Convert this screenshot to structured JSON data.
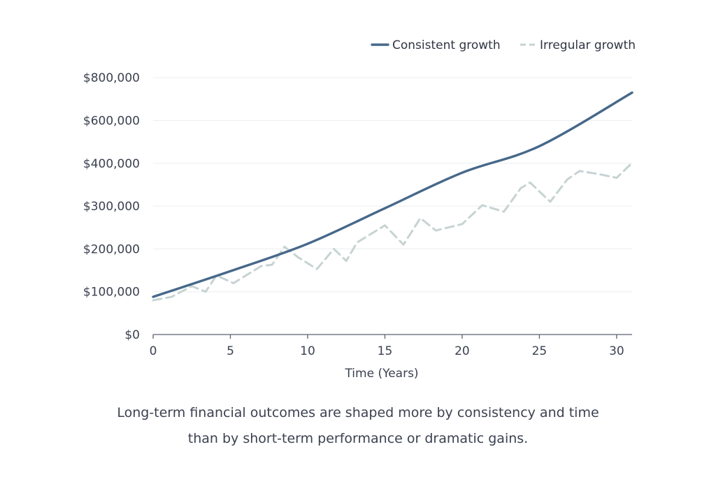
{
  "chart_data": {
    "type": "line",
    "xlabel": "Time (Years)",
    "ylabel": "",
    "x_ticks": [
      0,
      5,
      10,
      15,
      20,
      25,
      30
    ],
    "xlim": [
      0,
      31
    ],
    "y_ticks": [
      {
        "label": "$0",
        "value": 0
      },
      {
        "label": "$100,000",
        "value": 100000
      },
      {
        "label": "$200,000",
        "value": 200000
      },
      {
        "label": "$300,000",
        "value": 300000
      },
      {
        "label": "$400,000",
        "value": 400000
      },
      {
        "label": "$600,000",
        "value": 600000
      },
      {
        "label": "$800,000",
        "value": 800000
      }
    ],
    "legend_position": "top-right",
    "series": [
      {
        "name": "Consistent growth",
        "color": "#46688a",
        "style": "solid",
        "x": [
          0,
          5,
          10,
          15,
          20,
          25,
          31
        ],
        "y": [
          88000,
          148000,
          212000,
          295000,
          378000,
          480000,
          730000
        ]
      },
      {
        "name": "Irregular growth",
        "color": "#c7d3d3",
        "style": "dashed",
        "x": [
          0,
          1.2,
          2.5,
          3.4,
          4.1,
          5.2,
          6.1,
          7.0,
          7.7,
          8.5,
          9.4,
          10.6,
          11.7,
          12.5,
          13.2,
          15.0,
          16.2,
          17.3,
          18.3,
          20.0,
          21.3,
          22.7,
          23.8,
          24.4,
          25.7,
          26.8,
          27.6,
          28.8,
          30.0,
          31.0
        ],
        "y": [
          80000,
          88000,
          113000,
          100000,
          138000,
          120000,
          140000,
          160000,
          163000,
          205000,
          180000,
          153000,
          200000,
          172000,
          215000,
          255000,
          210000,
          272000,
          243000,
          258000,
          302000,
          287000,
          342000,
          355000,
          310000,
          362000,
          382000,
          375000,
          366000,
          402000
        ]
      }
    ]
  },
  "caption": {
    "line1": "Long-term financial outcomes are shaped more by consistency and time",
    "line2": "than by short-term performance or dramatic gains."
  }
}
